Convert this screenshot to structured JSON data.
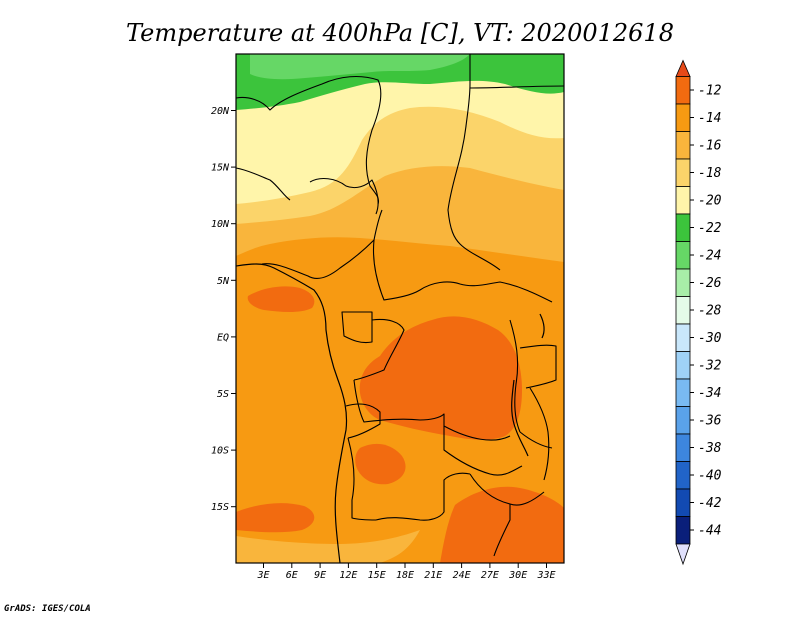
{
  "title": "Temperature at 400hPa [C], VT: 2020012618",
  "credit": "GrADS: IGES/COLA",
  "map": {
    "lat_labels": [
      "20N",
      "15N",
      "10N",
      "5N",
      "EQ",
      "5S",
      "10S",
      "15S"
    ],
    "lon_labels": [
      "3E",
      "6E",
      "9E",
      "12E",
      "15E",
      "18E",
      "21E",
      "24E",
      "27E",
      "30E",
      "33E"
    ]
  },
  "colorbar": {
    "labels": [
      "-12",
      "-14",
      "-16",
      "-18",
      "-20",
      "-22",
      "-24",
      "-26",
      "-28",
      "-30",
      "-32",
      "-34",
      "-36",
      "-38",
      "-40",
      "-42",
      "-44"
    ],
    "colors": [
      "#e64a19",
      "#f26b10",
      "#f79a12",
      "#f9b53c",
      "#fbd46a",
      "#fff5aa",
      "#3cc43c",
      "#66d766",
      "#a8eea8",
      "#e4fbe8",
      "#c9e7fb",
      "#9fd2f7",
      "#79baf2",
      "#5aa2ea",
      "#3d86de",
      "#2164c8",
      "#124ab2",
      "#0a1f7a",
      "#e0e0fc"
    ]
  },
  "fields": {
    "band_colors": [
      "#3cc43c",
      "#66d766",
      "#fff5aa",
      "#fbd46a",
      "#f9b53c",
      "#f79a12",
      "#f26b10"
    ]
  }
}
